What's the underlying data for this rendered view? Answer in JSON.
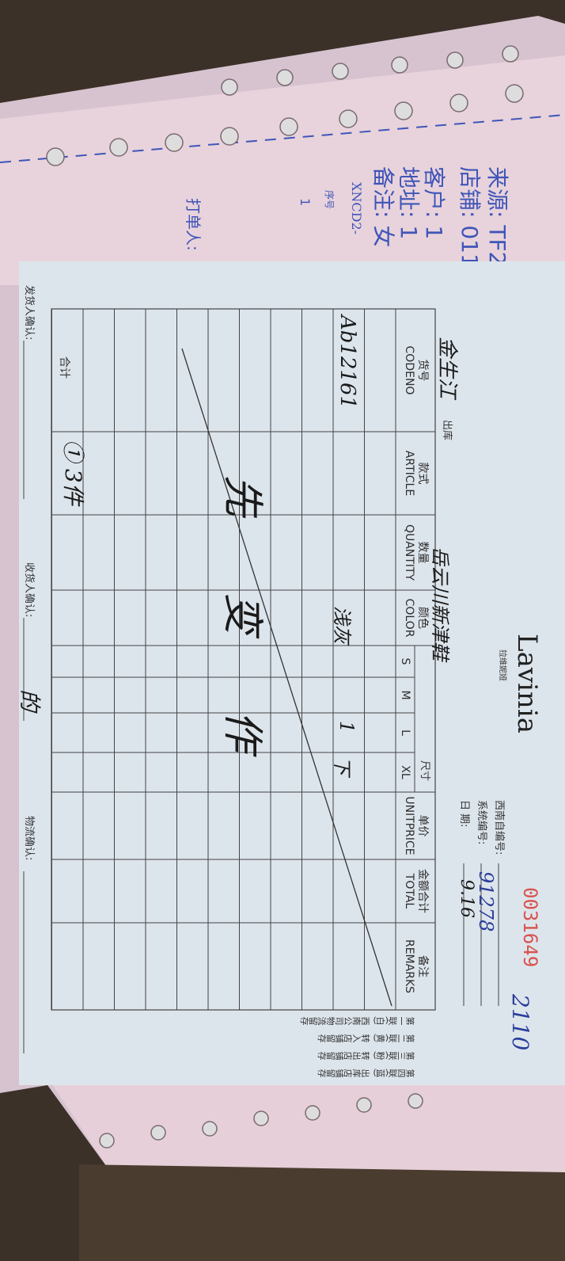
{
  "back_slip": {
    "source_label": "来源: TF2",
    "shop_label": "店铺: 011",
    "customer_label": "客户: 1",
    "address_label": "地址: 1",
    "remark_label": "备注: 女",
    "doc_code": "XNCD2-",
    "seq_header": "序号",
    "seq_value": "1",
    "printer_label": "打单人:"
  },
  "form": {
    "brand": "Lavinia",
    "brand_cn": "拉维妮娅",
    "serial_number": "0031649",
    "serial_color": "#d9534f",
    "southwest_no_label": "西南自编号:",
    "system_no_label": "系统编号:",
    "system_no_value": "91278",
    "date_label": "日    期:",
    "date_value": "9.16",
    "handwritten_corner": "2110",
    "shop_name": "金生江",
    "outbound_label": "出库",
    "destination": "岳云川新津鞋",
    "columns": [
      {
        "cn": "货号",
        "en": "CODENO"
      },
      {
        "cn": "款式",
        "en": "ARTICLE"
      },
      {
        "cn": "数量",
        "en": "QUANTITY"
      },
      {
        "cn": "颜色",
        "en": "COLOR"
      },
      {
        "cn": "",
        "en": "S"
      },
      {
        "cn": "",
        "en": "M"
      },
      {
        "cn": "",
        "en": "L"
      },
      {
        "cn": "",
        "en": "XL"
      },
      {
        "cn": "单价",
        "en": "UNITPRICE"
      },
      {
        "cn": "金额合计",
        "en": "TOTAL"
      },
      {
        "cn": "备注",
        "en": "REMARKS"
      }
    ],
    "size_group_label": "尺寸",
    "row1": {
      "codeno": "Ab12161",
      "color": "浅灰",
      "m": "1",
      "l": "下"
    },
    "crossed_note": "先 变 作",
    "total_label": "合计",
    "total_article": "① 3件",
    "copies": [
      "第一联(白) 西南公司物流留存",
      "第二联(黄) 转入店铺留存",
      "第三联(粉) 转出店铺留存",
      "第四联(蓝) 出库店铺留存"
    ],
    "shipper_confirm_label": "发货人确认:",
    "receiver_confirm_label": "收货人确认:",
    "receiver_signature": "的",
    "logistics_confirm_label": "物流确认:"
  }
}
